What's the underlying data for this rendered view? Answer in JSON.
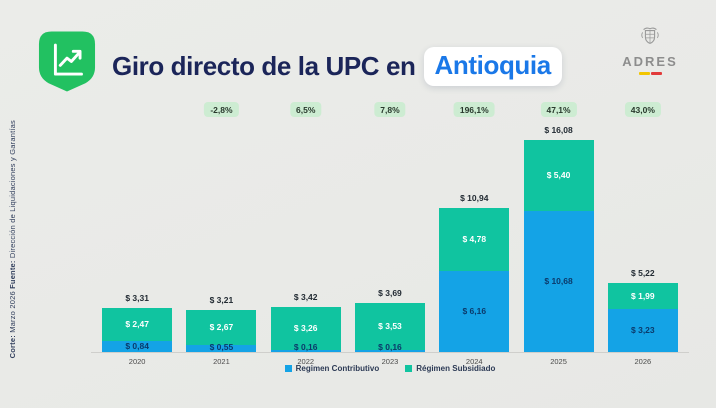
{
  "header": {
    "title_prefix": "Giro directo de la UPC en",
    "title_highlight": "Antioquia",
    "logo_text": "ADRES"
  },
  "sidebar": {
    "corte_label": "Corte:",
    "corte_value": "Marzo 2026",
    "fuente_label": "Fuente:",
    "fuente_value": "Dirección de Liquidaciones y Garantías"
  },
  "colors": {
    "title_navy": "#1b2559",
    "highlight_blue": "#1a78e8",
    "accent_green": "#22c161",
    "badge_bg": "#cdecd2",
    "contributivo_blue": "#14a3e6",
    "subsidiado_teal": "#10c4a0"
  },
  "chart_data": {
    "type": "bar",
    "stacked": true,
    "categories": [
      "2020",
      "2021",
      "2022",
      "2023",
      "2024",
      "2025",
      "2026"
    ],
    "series": [
      {
        "name": "Regimen Contributivo",
        "color": "#14a3e6",
        "values": [
          0.84,
          0.55,
          0.16,
          0.16,
          6.16,
          10.68,
          3.23
        ]
      },
      {
        "name": "Régimen Subsidiado",
        "color": "#10c4a0",
        "values": [
          2.47,
          2.67,
          3.26,
          3.53,
          4.78,
          5.4,
          1.99
        ]
      }
    ],
    "totals": [
      3.31,
      3.21,
      3.42,
      3.69,
      10.94,
      16.08,
      5.22
    ],
    "total_labels": [
      "$ 3,31",
      "$ 3,21",
      "$ 3,42",
      "$ 3,69",
      "$ 10,94",
      "$ 16,08",
      "$ 5,22"
    ],
    "segment_labels": {
      "contributivo": [
        "$ 0,84",
        "$ 0,55",
        "$ 0,16",
        "$ 0,16",
        "$ 6,16",
        "$ 10,68",
        "$ 3,23"
      ],
      "subsidiado": [
        "$ 2,47",
        "$ 2,67",
        "$ 3,26",
        "$ 3,53",
        "$ 4,78",
        "$ 5,40",
        "$ 1,99"
      ]
    },
    "growth_badges": [
      {
        "category": "2021",
        "label": "-2,8%"
      },
      {
        "category": "2022",
        "label": "6,5%"
      },
      {
        "category": "2023",
        "label": "7,8%"
      },
      {
        "category": "2024",
        "label": "196,1%"
      },
      {
        "category": "2025",
        "label": "47,1%"
      },
      {
        "category": "2026",
        "label": "43,0%"
      }
    ],
    "ylim": [
      0,
      16.08
    ],
    "grid": false,
    "legend_position": "bottom"
  }
}
